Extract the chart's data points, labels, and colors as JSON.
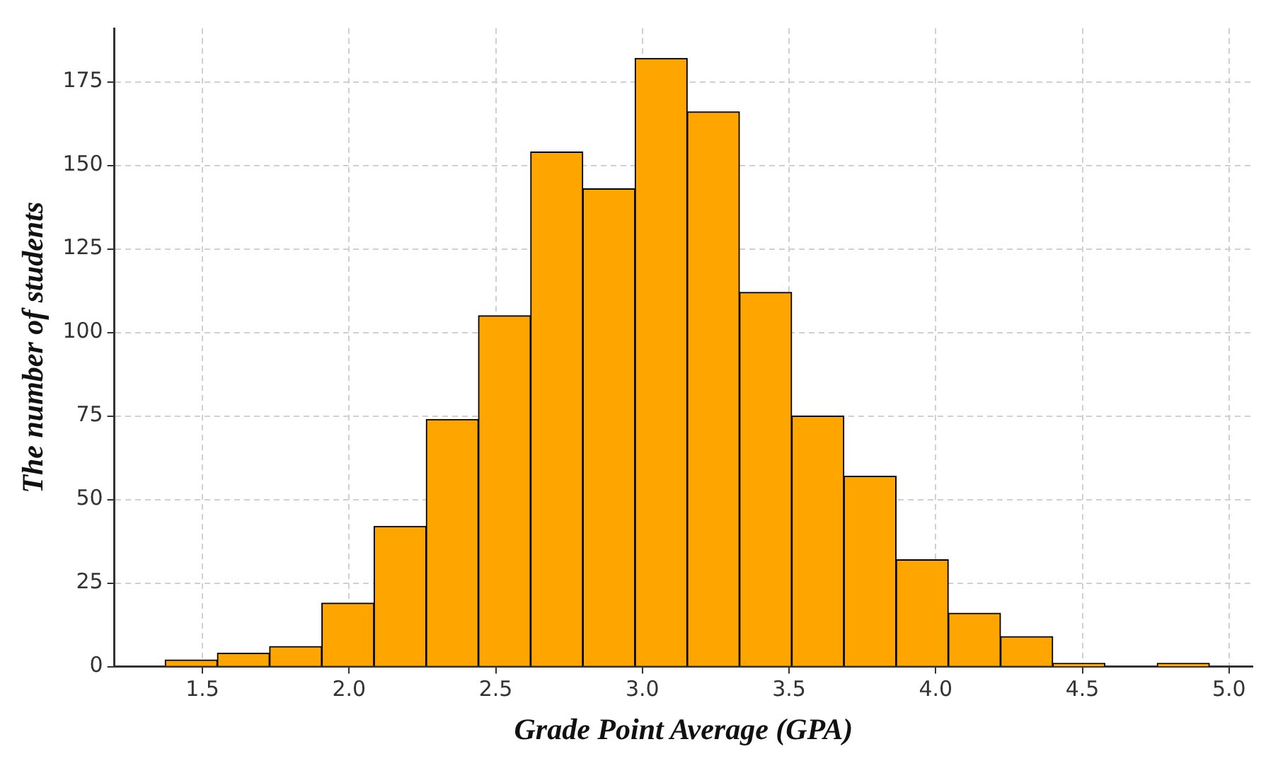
{
  "chart_data": {
    "type": "histogram",
    "xlabel": "Grade Point Average (GPA)",
    "ylabel": "The number of students",
    "bins": [
      1.373,
      1.551,
      1.729,
      1.907,
      2.085,
      2.263,
      2.441,
      2.619,
      2.797,
      2.975,
      3.153,
      3.331,
      3.509,
      3.687,
      3.865,
      4.043,
      4.221,
      4.399,
      4.577,
      4.755,
      4.933
    ],
    "values": [
      2,
      4,
      6,
      19,
      42,
      74,
      105,
      154,
      143,
      182,
      166,
      112,
      75,
      57,
      32,
      16,
      9,
      1,
      0,
      1
    ],
    "color": "#ffa500",
    "xlim": [
      1.2,
      5.08
    ],
    "xticks": [
      1.5,
      {
        "value": 2,
        "label": "2.0"
      },
      2.5,
      {
        "value": 3,
        "label": "3.0"
      },
      3.5,
      {
        "value": 4,
        "label": "4.0"
      },
      4.5,
      {
        "value": 5,
        "label": "5.0"
      }
    ],
    "ylim": [
      0,
      191
    ],
    "yticks": [
      0,
      25,
      50,
      75,
      100,
      125,
      150,
      175
    ],
    "grid": true
  }
}
